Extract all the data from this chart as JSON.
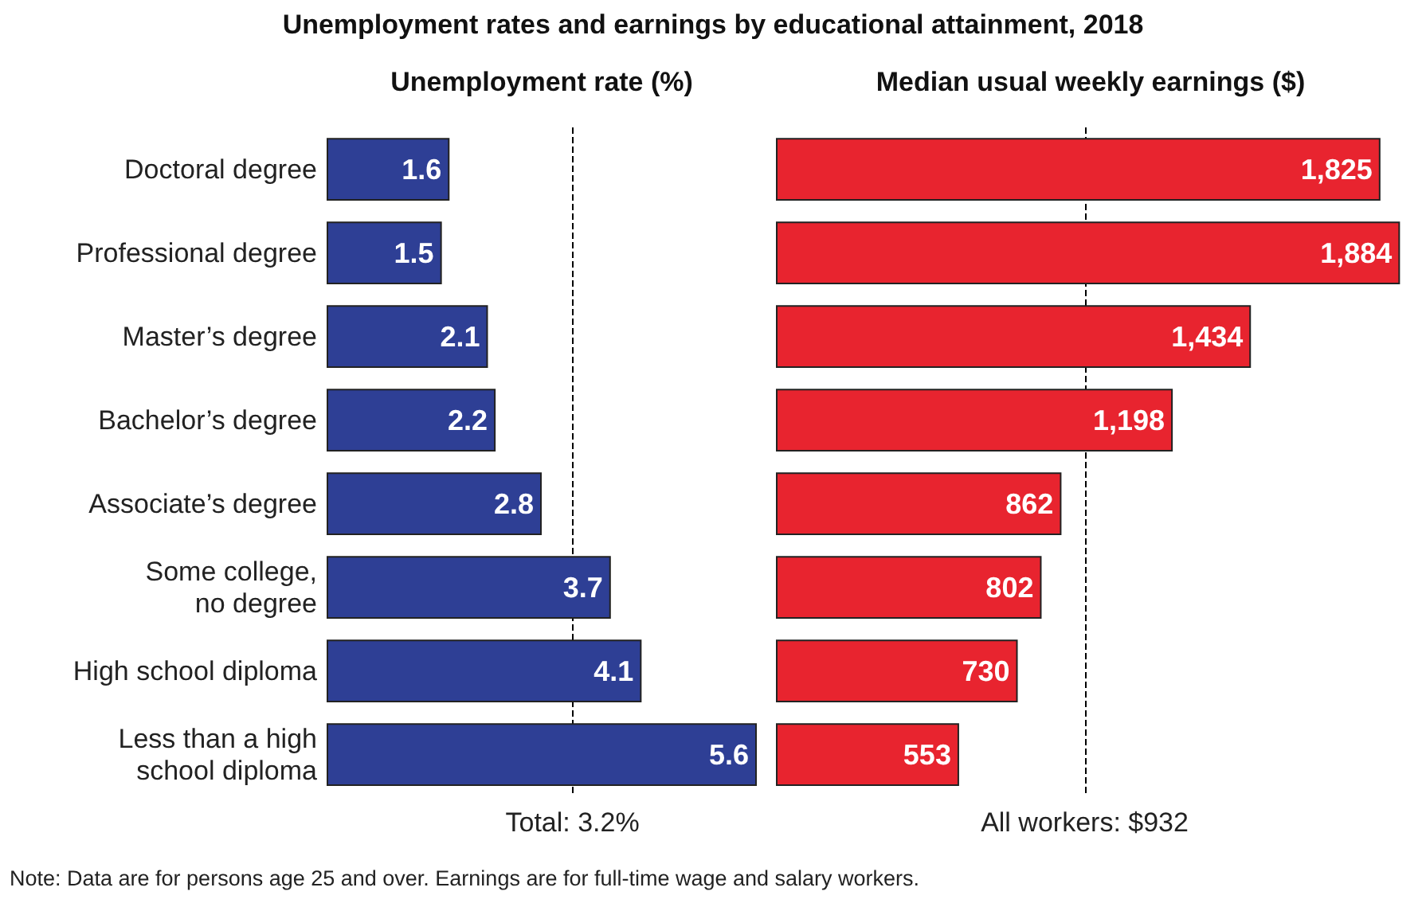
{
  "chart_data": [
    {
      "type": "bar",
      "orientation": "horizontal",
      "title": "Unemployment rates and earnings by educational attainment, 2018",
      "subtitle": "Unemployment rate (%)",
      "categories": [
        "Doctoral degree",
        "Professional degree",
        "Master’s degree",
        "Bachelor’s degree",
        "Associate’s degree",
        "Some college,\nno degree",
        "High school diploma",
        "Less than a high\nschool diploma"
      ],
      "values": [
        1.6,
        1.5,
        2.1,
        2.2,
        2.8,
        3.7,
        4.1,
        5.6
      ],
      "color": "#2e3f95",
      "xlim": [
        0,
        5.6
      ],
      "data_labels": true,
      "tick_labels": "y",
      "ref_lines": [
        {
          "axis": "x",
          "value": 3.2,
          "label": "Total: 3.2%",
          "line_style": "dashed",
          "color": "#000000"
        }
      ],
      "annotations": [
        "Note: Data are for persons age 25 and over. Earnings are for full-time wage and salary workers."
      ]
    },
    {
      "type": "bar",
      "orientation": "horizontal",
      "title": "Median usual weekly earnings ($)",
      "categories": [
        null,
        null,
        null,
        null,
        null,
        null,
        null,
        null
      ],
      "values": [
        1825,
        1884,
        1434,
        1198,
        862,
        802,
        730,
        553
      ],
      "color": "#e8242f",
      "xlim": [
        0,
        1900
      ],
      "tick_labels": false,
      "value_labels": [
        "1,825",
        "1,884",
        "1,434",
        "1,198",
        "862",
        "802",
        "730",
        "553"
      ],
      "ref_lines": [
        {
          "axis": "x",
          "value": 932,
          "label": "All workers: $932",
          "line_style": "dashed",
          "color": "#000000"
        }
      ]
    }
  ]
}
